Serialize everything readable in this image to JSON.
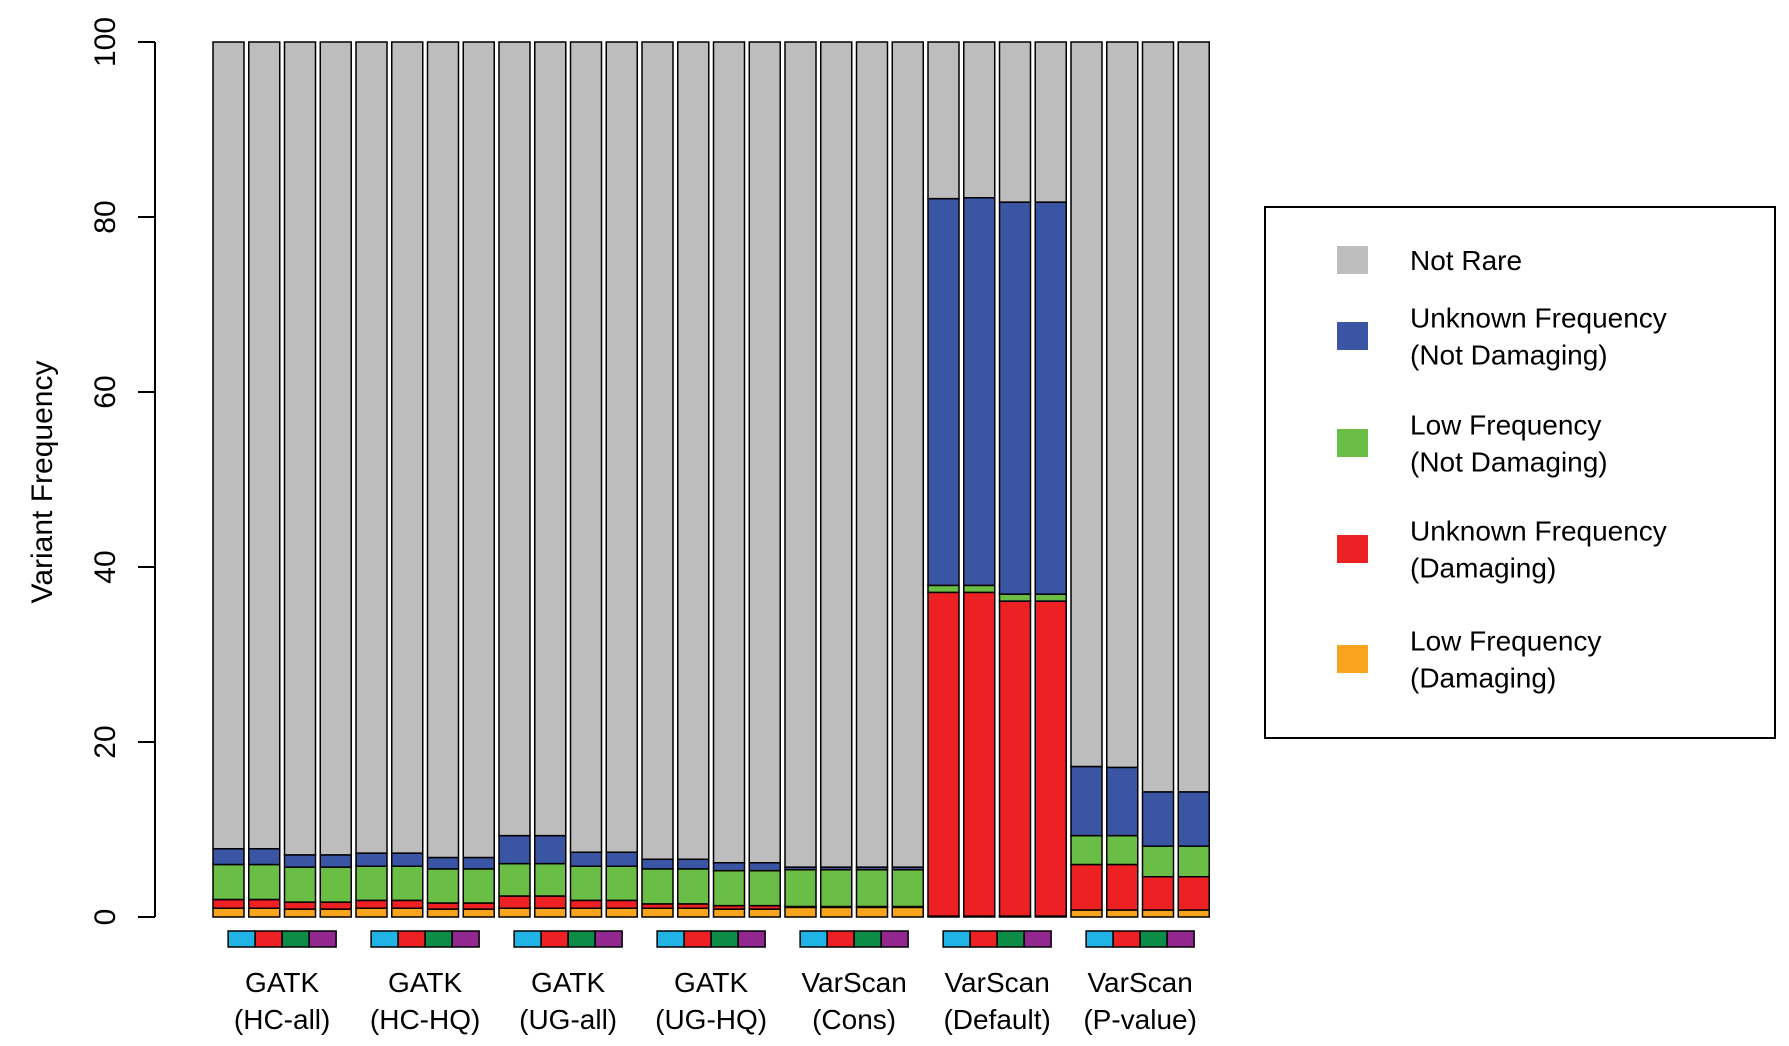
{
  "chart_data": {
    "type": "bar",
    "stacked": true,
    "ylabel": "Variant Frequency",
    "xlabel": "",
    "title": "",
    "ylim": [
      0,
      100
    ],
    "yticks": [
      0,
      20,
      40,
      60,
      80,
      100
    ],
    "legend_position": "right",
    "series": [
      {
        "name": "Low Frequency (Damaging)",
        "label_lines": [
          "Low Frequency",
          "(Damaging)"
        ],
        "color": "#f8a51d",
        "values": [
          1.0,
          1.0,
          0.9,
          0.9,
          1.0,
          1.0,
          0.9,
          0.9,
          1.0,
          1.0,
          1.0,
          1.0,
          1.0,
          1.0,
          0.9,
          0.9,
          1.1,
          1.1,
          1.1,
          1.1,
          0.1,
          0.1,
          0.1,
          0.1,
          0.8,
          0.8,
          0.8,
          0.8
        ]
      },
      {
        "name": "Unknown Frequency (Damaging)",
        "label_lines": [
          "Unknown Frequency",
          "(Damaging)"
        ],
        "color": "#ed2024",
        "values": [
          1.0,
          1.0,
          0.8,
          0.8,
          0.9,
          0.9,
          0.7,
          0.7,
          1.4,
          1.4,
          0.9,
          0.9,
          0.5,
          0.5,
          0.4,
          0.4,
          0.1,
          0.1,
          0.1,
          0.1,
          37.0,
          37.0,
          36.0,
          36.0,
          5.2,
          5.2,
          3.8,
          3.8
        ]
      },
      {
        "name": "Low Frequency (Not Damaging)",
        "label_lines": [
          "Low Frequency",
          "(Not Damaging)"
        ],
        "color": "#6abd45",
        "values": [
          4.0,
          4.0,
          4.0,
          4.0,
          3.9,
          3.9,
          3.9,
          3.9,
          3.7,
          3.7,
          3.9,
          3.9,
          4.0,
          4.0,
          4.0,
          4.0,
          4.2,
          4.2,
          4.2,
          4.2,
          0.8,
          0.8,
          0.8,
          0.8,
          3.3,
          3.3,
          3.5,
          3.5
        ]
      },
      {
        "name": "Unknown Frequency (Not Damaging)",
        "label_lines": [
          "Unknown Frequency",
          "(Not Damaging)"
        ],
        "color": "#3a55a4",
        "values": [
          1.8,
          1.8,
          1.4,
          1.4,
          1.5,
          1.5,
          1.3,
          1.3,
          3.2,
          3.2,
          1.6,
          1.6,
          1.1,
          1.1,
          0.9,
          0.9,
          0.3,
          0.3,
          0.3,
          0.3,
          44.2,
          44.3,
          44.8,
          44.8,
          7.9,
          7.8,
          6.2,
          6.2
        ]
      },
      {
        "name": "Not Rare",
        "label_lines": [
          "Not Rare"
        ],
        "color": "#bdbdbd",
        "values": [
          92.2,
          92.2,
          92.9,
          92.9,
          92.7,
          92.7,
          93.2,
          93.2,
          90.7,
          90.7,
          92.6,
          92.6,
          93.4,
          93.4,
          93.8,
          93.8,
          94.3,
          94.3,
          94.3,
          94.3,
          17.9,
          17.8,
          18.3,
          18.3,
          82.8,
          82.9,
          85.7,
          85.7
        ]
      }
    ],
    "groups": [
      {
        "label_lines": [
          "GATK",
          "(HC-all)"
        ]
      },
      {
        "label_lines": [
          "GATK",
          "(HC-HQ)"
        ]
      },
      {
        "label_lines": [
          "GATK",
          "(UG-all)"
        ]
      },
      {
        "label_lines": [
          "GATK",
          "(UG-HQ)"
        ]
      },
      {
        "label_lines": [
          "VarScan",
          "(Cons)"
        ]
      },
      {
        "label_lines": [
          "VarScan",
          "(Default)"
        ]
      },
      {
        "label_lines": [
          "VarScan",
          "(P-value)"
        ]
      }
    ],
    "bars_per_group": 4,
    "sample_colors": [
      "#1fb3e6",
      "#ed2024",
      "#0c8c47",
      "#92278f"
    ]
  }
}
